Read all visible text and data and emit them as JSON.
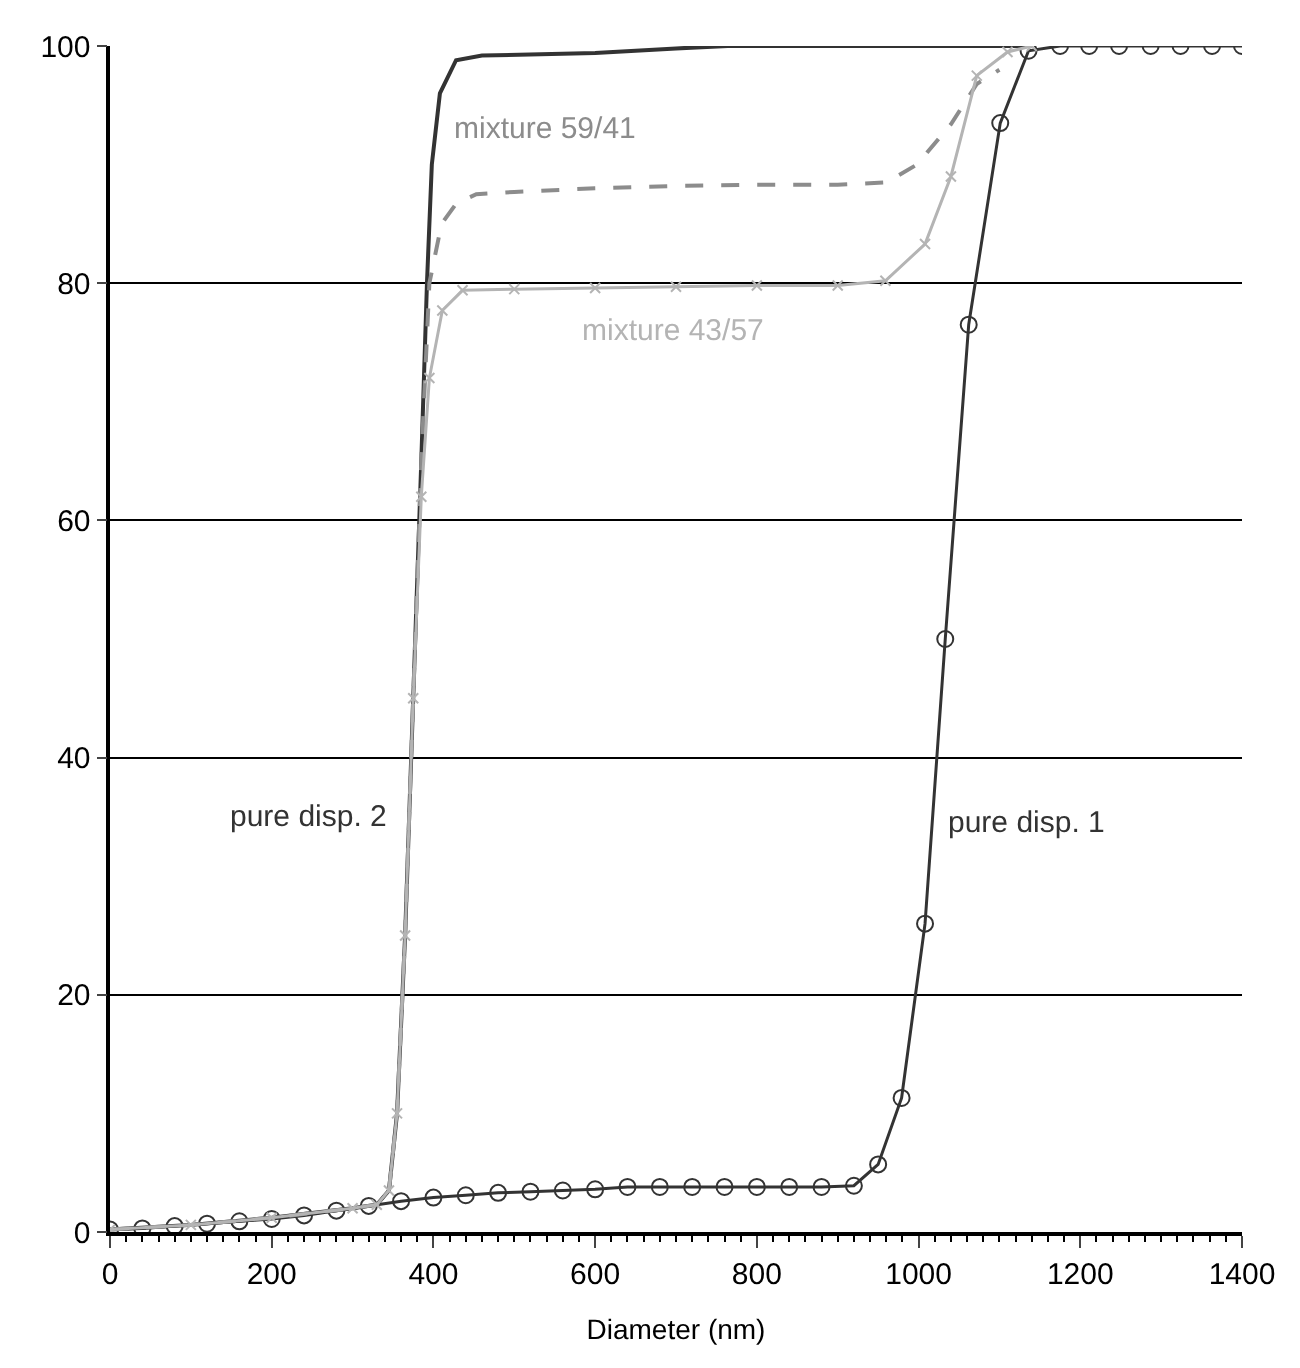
{
  "chart_data": {
    "type": "line",
    "xlabel": "Diameter (nm)",
    "xlim": [
      0,
      1400
    ],
    "xticks": [
      0,
      200,
      400,
      600,
      800,
      1000,
      1200,
      1400
    ],
    "ylim": [
      0,
      100
    ],
    "yticks": [
      0,
      20,
      40,
      60,
      80,
      100
    ],
    "grid": "y",
    "legend": false,
    "series": [
      {
        "name": "pure disp. 1",
        "color": "#333333",
        "marker": "circle",
        "line_style": "solid",
        "x": [
          0,
          40,
          80,
          120,
          160,
          200,
          240,
          280,
          320,
          360,
          400,
          440,
          480,
          520,
          560,
          600,
          640,
          680,
          720,
          760,
          800,
          840,
          880,
          920,
          950,
          979,
          1008,
          1033,
          1062,
          1101,
          1136,
          1175,
          1211,
          1248,
          1287,
          1324,
          1363,
          1400
        ],
        "values": [
          0.2,
          0.3,
          0.5,
          0.7,
          0.9,
          1.1,
          1.4,
          1.8,
          2.2,
          2.6,
          2.9,
          3.1,
          3.3,
          3.4,
          3.5,
          3.6,
          3.8,
          3.8,
          3.8,
          3.8,
          3.8,
          3.8,
          3.8,
          3.9,
          5.7,
          11.3,
          26,
          50,
          76.5,
          93.5,
          99.6,
          100,
          100,
          100,
          100,
          100,
          100,
          100
        ]
      },
      {
        "name": "pure disp. 2",
        "color": "#333333",
        "marker": "none",
        "line_style": "solid",
        "x": [
          0,
          100,
          200,
          300,
          330,
          345,
          355,
          365,
          375,
          385,
          392,
          398,
          408,
          428,
          460,
          600,
          700,
          764,
          1140
        ],
        "values": [
          0.2,
          0.6,
          1.2,
          2,
          2.3,
          3.5,
          10,
          25,
          45,
          65,
          80,
          90,
          96,
          98.8,
          99.2,
          99.4,
          99.8,
          100,
          100
        ]
      },
      {
        "name": "mixture 59/41",
        "color": "#8c8c8c",
        "marker": "none",
        "line_style": "dashed",
        "x": [
          0,
          100,
          200,
          300,
          330,
          345,
          355,
          365,
          375,
          385,
          395,
          410,
          428,
          453,
          500,
          600,
          700,
          800,
          900,
          960,
          998,
          1040,
          1072,
          1100
        ],
        "values": [
          0.2,
          0.6,
          1.2,
          2,
          2.3,
          3.5,
          10,
          25,
          45,
          65,
          80,
          85,
          86.7,
          87.5,
          87.7,
          88,
          88.2,
          88.3,
          88.3,
          88.5,
          90,
          93.4,
          96.8,
          98
        ]
      },
      {
        "name": "mixture 43/57",
        "color": "#b4b4b4",
        "marker": "cross",
        "line_style": "solid",
        "x": [
          0,
          100,
          200,
          300,
          330,
          345,
          355,
          365,
          375,
          385,
          395,
          411,
          436,
          500,
          600,
          700,
          800,
          900,
          959,
          1008,
          1040,
          1072,
          1110,
          1140
        ],
        "values": [
          0.2,
          0.6,
          1.2,
          2,
          2.3,
          3.5,
          10,
          25,
          45,
          62,
          72,
          77.7,
          79.4,
          79.5,
          79.6,
          79.7,
          79.8,
          79.8,
          80.2,
          83.3,
          89,
          97.5,
          99.5,
          100
        ]
      }
    ]
  }
}
